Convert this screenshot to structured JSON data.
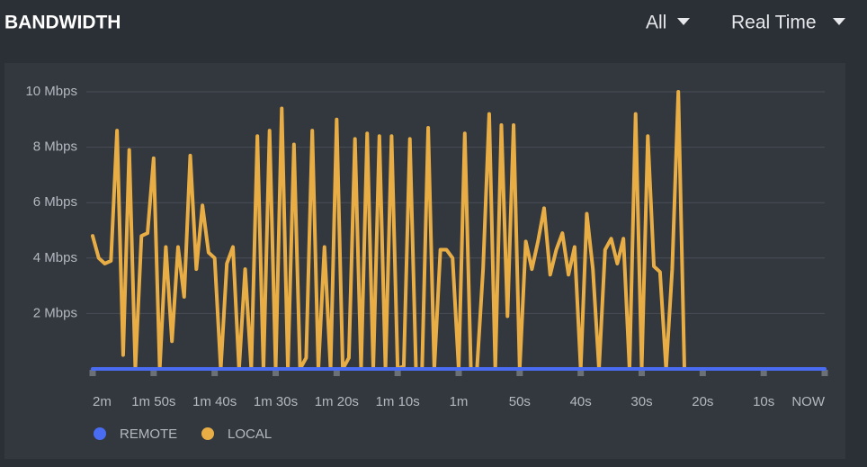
{
  "header": {
    "title": "BANDWIDTH",
    "filters": [
      "All",
      "Real Time"
    ]
  },
  "chart_data": {
    "type": "line",
    "x": [
      120,
      119,
      118,
      117,
      116,
      115,
      114,
      113,
      112,
      111,
      110,
      109,
      108,
      107,
      106,
      105,
      104,
      103,
      102,
      101,
      100,
      99,
      98,
      97,
      96,
      95,
      94,
      93,
      92,
      91,
      90,
      89,
      88,
      87,
      86,
      85,
      84,
      83,
      82,
      81,
      80,
      79,
      78,
      77,
      76,
      75,
      74,
      73,
      72,
      71,
      70,
      69,
      68,
      67,
      66,
      65,
      64,
      63,
      62,
      61,
      60,
      59,
      58,
      57,
      56,
      55,
      54,
      53,
      52,
      51,
      50,
      49,
      48,
      47,
      46,
      45,
      44,
      43,
      42,
      41,
      40,
      39,
      38,
      37,
      36,
      35,
      34,
      33,
      32,
      31,
      30,
      29,
      28,
      27,
      26,
      25,
      24,
      23,
      22,
      21,
      20,
      19,
      18,
      17,
      16,
      15,
      14,
      13,
      12,
      11,
      10,
      9,
      8,
      7,
      6,
      5,
      4,
      3,
      2,
      1,
      0
    ],
    "xlim": [
      120,
      0
    ],
    "xticks": [
      {
        "value": 120,
        "label": "2m"
      },
      {
        "value": 110,
        "label": "1m 50s"
      },
      {
        "value": 100,
        "label": "1m 40s"
      },
      {
        "value": 90,
        "label": "1m 30s"
      },
      {
        "value": 80,
        "label": "1m 20s"
      },
      {
        "value": 70,
        "label": "1m 10s"
      },
      {
        "value": 60,
        "label": "1m"
      },
      {
        "value": 50,
        "label": "50s"
      },
      {
        "value": 40,
        "label": "40s"
      },
      {
        "value": 30,
        "label": "30s"
      },
      {
        "value": 20,
        "label": "20s"
      },
      {
        "value": 10,
        "label": "10s"
      },
      {
        "value": 0,
        "label": "NOW"
      }
    ],
    "ylim": [
      0,
      10
    ],
    "yticks": [
      {
        "value": 2,
        "label": "2 Mbps"
      },
      {
        "value": 4,
        "label": "4 Mbps"
      },
      {
        "value": 6,
        "label": "6 Mbps"
      },
      {
        "value": 8,
        "label": "8 Mbps"
      },
      {
        "value": 10,
        "label": "10 Mbps"
      }
    ],
    "grid": true,
    "series": [
      {
        "name": "REMOTE",
        "color": "#4a6cf2",
        "values": [
          0,
          0,
          0,
          0,
          0,
          0,
          0,
          0,
          0,
          0,
          0,
          0,
          0,
          0,
          0,
          0,
          0,
          0,
          0,
          0,
          0,
          0,
          0,
          0,
          0,
          0,
          0,
          0,
          0,
          0,
          0,
          0,
          0,
          0,
          0,
          0,
          0,
          0,
          0,
          0,
          0,
          0,
          0,
          0,
          0,
          0,
          0,
          0,
          0,
          0,
          0,
          0,
          0,
          0,
          0,
          0,
          0,
          0,
          0,
          0,
          0,
          0,
          0,
          0,
          0,
          0,
          0,
          0,
          0,
          0,
          0,
          0,
          0,
          0,
          0,
          0,
          0,
          0,
          0,
          0,
          0,
          0,
          0,
          0,
          0,
          0,
          0,
          0,
          0,
          0,
          0,
          0,
          0,
          0,
          0,
          0,
          0,
          0,
          0,
          0,
          0,
          0,
          0,
          0,
          0,
          0,
          0,
          0,
          0,
          0,
          0,
          0,
          0,
          0,
          0,
          0,
          0,
          0,
          0,
          0,
          0
        ]
      },
      {
        "name": "LOCAL",
        "color": "#e8ae45",
        "values": [
          4.8,
          4.0,
          3.8,
          3.9,
          8.6,
          0.5,
          7.9,
          0,
          4.8,
          4.9,
          7.6,
          0,
          4.4,
          1.0,
          4.4,
          2.6,
          7.7,
          3.6,
          5.9,
          4.2,
          4.0,
          0,
          3.8,
          4.4,
          0,
          3.6,
          0,
          8.4,
          0,
          8.6,
          0,
          9.4,
          0,
          8.1,
          0,
          0.4,
          8.6,
          0,
          4.4,
          0,
          9.0,
          0,
          0.4,
          8.3,
          0,
          8.5,
          0,
          8.4,
          0,
          8.4,
          0,
          0.1,
          8.3,
          0,
          0,
          8.7,
          0,
          4.3,
          4.3,
          4.0,
          0,
          8.5,
          0,
          0,
          3.6,
          9.2,
          0,
          8.8,
          1.9,
          8.8,
          0,
          4.6,
          3.6,
          4.6,
          5.8,
          3.4,
          4.3,
          4.9,
          3.4,
          4.4,
          0,
          5.6,
          3.6,
          0,
          4.3,
          4.7,
          3.8,
          4.7,
          0,
          9.2,
          0,
          8.4,
          3.7,
          3.5,
          0,
          3.6,
          10.0,
          0,
          null,
          null,
          null,
          null,
          null,
          null,
          null,
          null,
          null,
          null,
          null,
          null,
          null,
          null,
          null,
          null,
          null,
          null,
          null,
          null,
          null,
          null,
          null
        ]
      }
    ]
  }
}
